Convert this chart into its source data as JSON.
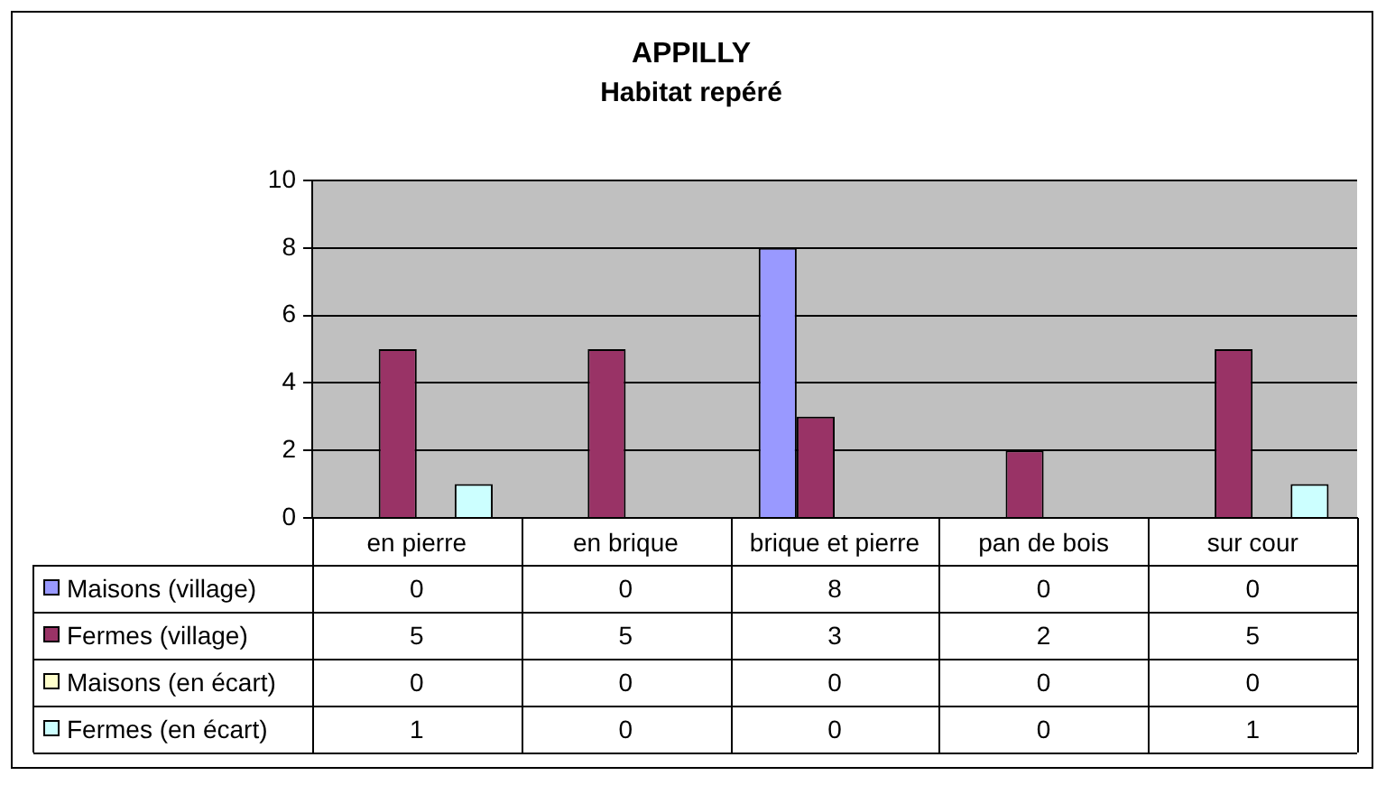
{
  "chart_data": {
    "type": "bar",
    "title": "APPILLY",
    "subtitle": "Habitat repéré",
    "categories": [
      "en pierre",
      "en brique",
      "brique et pierre",
      "pan de bois",
      "sur cour"
    ],
    "series": [
      {
        "name": "Maisons (village)",
        "color": "#9999ff",
        "values": [
          0,
          0,
          8,
          0,
          0
        ]
      },
      {
        "name": "Fermes (village)",
        "color": "#993366",
        "values": [
          5,
          5,
          3,
          2,
          5
        ]
      },
      {
        "name": "Maisons (en écart)",
        "color": "#ffffcc",
        "values": [
          0,
          0,
          0,
          0,
          0
        ]
      },
      {
        "name": "Fermes (en écart)",
        "color": "#ccffff",
        "values": [
          1,
          0,
          0,
          0,
          1
        ]
      }
    ],
    "ylim": [
      0,
      10
    ],
    "yticks": [
      0,
      2,
      4,
      6,
      8,
      10
    ],
    "grid": "y",
    "legend": "bottom",
    "data_labels": true
  }
}
